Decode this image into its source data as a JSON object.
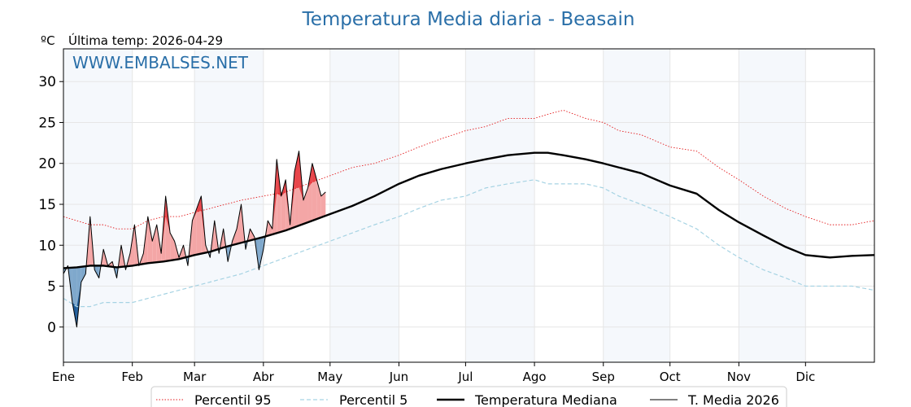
{
  "chart_data": {
    "type": "line",
    "title": "Temperatura Media diaria - Beasain",
    "unit_label": "ºC",
    "last_temp_label": "Última temp: 2026-04-29",
    "watermark": "WWW.EMBALSES.NET",
    "xlabel": "",
    "ylabel": "",
    "x_range_days": [
      0,
      365
    ],
    "ylim": [
      -4.3,
      34
    ],
    "y_ticks": [
      0,
      5,
      10,
      15,
      20,
      25,
      30
    ],
    "month_ticks": [
      {
        "label": "Ene",
        "day": 0
      },
      {
        "label": "Feb",
        "day": 31
      },
      {
        "label": "Mar",
        "day": 59
      },
      {
        "label": "Abr",
        "day": 90
      },
      {
        "label": "May",
        "day": 120
      },
      {
        "label": "Jun",
        "day": 151
      },
      {
        "label": "Jul",
        "day": 181
      },
      {
        "label": "Ago",
        "day": 212
      },
      {
        "label": "Sep",
        "day": 243
      },
      {
        "label": "Oct",
        "day": 273
      },
      {
        "label": "Nov",
        "day": 304
      },
      {
        "label": "Dic",
        "day": 334
      }
    ],
    "shaded_month_spans": [
      [
        0,
        31
      ],
      [
        59,
        90
      ],
      [
        120,
        151
      ],
      [
        181,
        212
      ],
      [
        243,
        273
      ],
      [
        304,
        334
      ]
    ],
    "grid": true,
    "legend_position": "bottom",
    "legend": [
      {
        "name": "Percentil 95",
        "style": "dotted",
        "color": "#e31a1c"
      },
      {
        "name": "Percentil 5",
        "style": "dashed",
        "color": "#a6d3e3"
      },
      {
        "name": "Temperatura Mediana",
        "style": "solid-thick",
        "color": "#000000"
      },
      {
        "name": "T. Media 2026",
        "style": "solid-thin",
        "color": "#000000"
      }
    ],
    "colors": {
      "p95": "#e31a1c",
      "p5": "#a6d3e3",
      "median": "#000000",
      "current": "#000000",
      "above_fill": "#f4a6a6",
      "above_fill_strong": "#e8454a",
      "below_fill": "#7fa8cc",
      "below_fill_strong": "#1f5c99",
      "band": "#f5f8fc",
      "title": "#2a6fa8",
      "watermark": "#2a6fa8"
    },
    "series": [
      {
        "name": "Percentil 95",
        "x": [
          0,
          6,
          12,
          18,
          24,
          31,
          38,
          45,
          52,
          59,
          66,
          73,
          80,
          90,
          100,
          110,
          120,
          130,
          140,
          151,
          160,
          170,
          181,
          190,
          200,
          212,
          218,
          225,
          235,
          243,
          250,
          260,
          273,
          285,
          295,
          304,
          315,
          325,
          334,
          345,
          355,
          365
        ],
        "values": [
          13.5,
          13.0,
          12.5,
          12.5,
          12.0,
          12.0,
          13.0,
          13.5,
          13.5,
          14.0,
          14.5,
          15.0,
          15.5,
          16.0,
          16.5,
          17.5,
          18.5,
          19.5,
          20.0,
          21.0,
          22.0,
          23.0,
          24.0,
          24.5,
          25.5,
          25.5,
          26.0,
          26.5,
          25.5,
          25.0,
          24.0,
          23.5,
          22.0,
          21.5,
          19.5,
          18.0,
          16.0,
          14.5,
          13.5,
          12.5,
          12.5,
          13.0
        ]
      },
      {
        "name": "Percentil 5",
        "x": [
          0,
          6,
          12,
          18,
          24,
          31,
          38,
          45,
          52,
          59,
          66,
          73,
          80,
          90,
          100,
          110,
          120,
          130,
          140,
          151,
          160,
          170,
          181,
          190,
          200,
          212,
          218,
          225,
          235,
          243,
          250,
          260,
          273,
          285,
          295,
          304,
          315,
          325,
          334,
          345,
          355,
          365
        ],
        "values": [
          3.5,
          2.5,
          2.5,
          3.0,
          3.0,
          3.0,
          3.5,
          4.0,
          4.5,
          5.0,
          5.5,
          6.0,
          6.5,
          7.5,
          8.5,
          9.5,
          10.5,
          11.5,
          12.5,
          13.5,
          14.5,
          15.5,
          16.0,
          17.0,
          17.5,
          18.0,
          17.5,
          17.5,
          17.5,
          17.0,
          16.0,
          15.0,
          13.5,
          12.0,
          10.0,
          8.5,
          7.0,
          6.0,
          5.0,
          5.0,
          5.0,
          4.5
        ]
      },
      {
        "name": "Temperatura Mediana",
        "x": [
          0,
          6,
          12,
          18,
          24,
          31,
          38,
          45,
          52,
          59,
          66,
          73,
          80,
          90,
          100,
          110,
          120,
          130,
          140,
          151,
          160,
          170,
          181,
          190,
          200,
          212,
          218,
          225,
          235,
          243,
          250,
          260,
          273,
          285,
          295,
          304,
          315,
          325,
          334,
          345,
          355,
          365
        ],
        "values": [
          7.2,
          7.3,
          7.5,
          7.5,
          7.3,
          7.5,
          7.8,
          8.0,
          8.3,
          8.8,
          9.2,
          9.8,
          10.3,
          11.0,
          11.8,
          12.8,
          13.8,
          14.8,
          16.0,
          17.5,
          18.5,
          19.3,
          20.0,
          20.5,
          21.0,
          21.3,
          21.3,
          21.0,
          20.5,
          20.0,
          19.5,
          18.8,
          17.3,
          16.3,
          14.3,
          12.8,
          11.2,
          9.8,
          8.8,
          8.5,
          8.7,
          8.8
        ]
      },
      {
        "name": "T. Media 2026",
        "x": [
          0,
          2,
          4,
          6,
          8,
          10,
          12,
          14,
          16,
          18,
          20,
          22,
          24,
          26,
          28,
          30,
          32,
          34,
          36,
          38,
          40,
          42,
          44,
          46,
          48,
          50,
          52,
          54,
          56,
          58,
          60,
          62,
          64,
          66,
          68,
          70,
          72,
          74,
          76,
          78,
          80,
          82,
          84,
          86,
          88,
          90,
          92,
          94,
          96,
          98,
          100,
          102,
          104,
          106,
          108,
          110,
          112,
          114,
          116,
          118
        ],
        "values": [
          6.5,
          7.5,
          3.0,
          0.0,
          5.5,
          6.5,
          13.5,
          7.0,
          6.0,
          9.5,
          7.5,
          8.0,
          6.0,
          10.0,
          7.0,
          9.0,
          12.5,
          7.5,
          9.0,
          13.5,
          10.5,
          12.5,
          9.0,
          16.0,
          11.5,
          10.5,
          8.5,
          10.0,
          7.5,
          13.0,
          14.5,
          16.0,
          10.0,
          8.5,
          13.0,
          9.0,
          12.0,
          8.0,
          10.5,
          12.0,
          15.0,
          9.5,
          12.0,
          11.0,
          7.0,
          9.5,
          13.0,
          12.0,
          20.5,
          16.0,
          18.0,
          12.5,
          19.0,
          21.5,
          15.5,
          17.0,
          20.0,
          18.0,
          16.0,
          16.5
        ]
      }
    ]
  }
}
